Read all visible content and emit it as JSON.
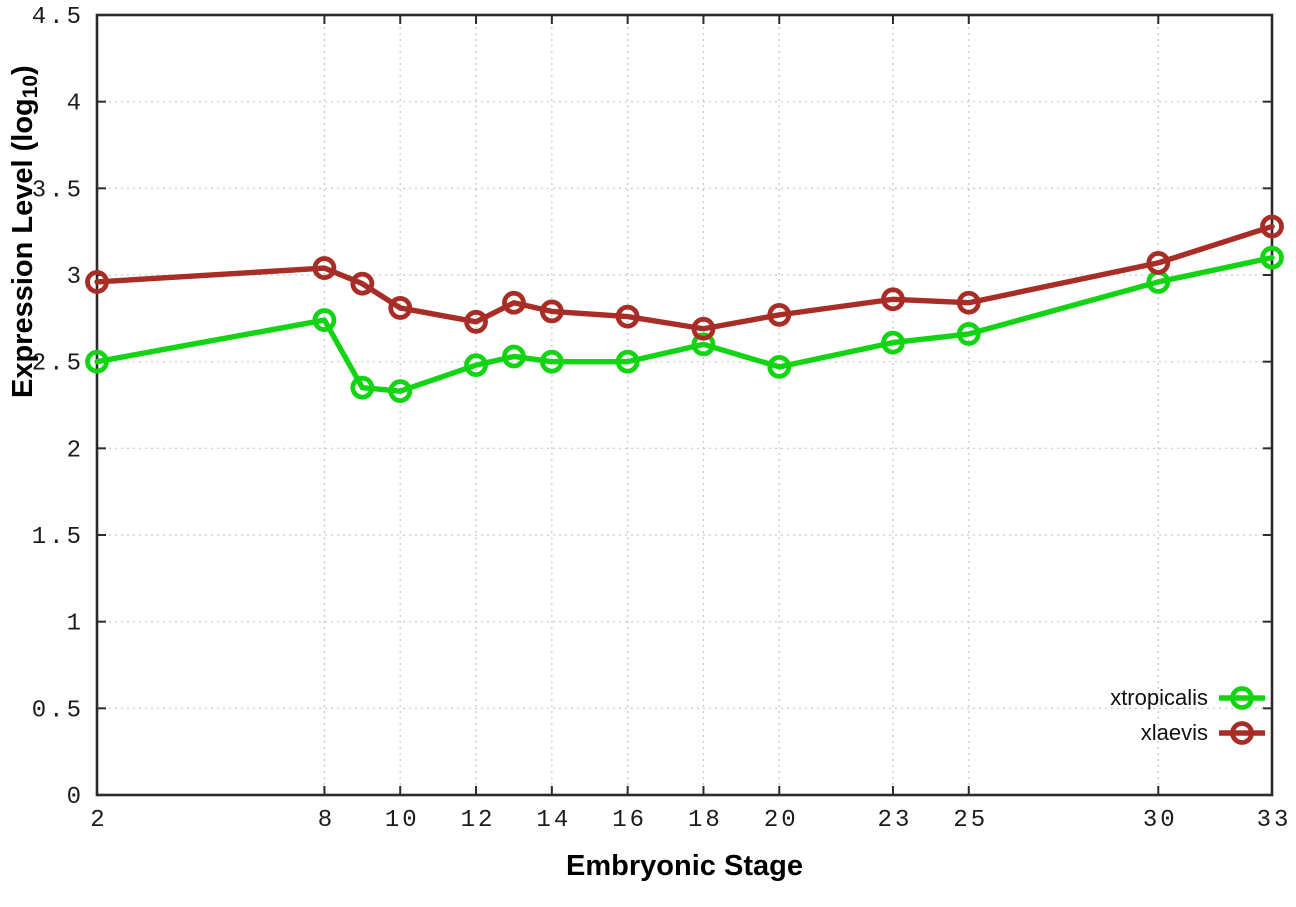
{
  "chart_data": {
    "type": "line",
    "title": "",
    "xlabel": "Embryonic Stage",
    "ylabel": {
      "text": "Expression Level (log",
      "sub": "10",
      "suffix": ")"
    },
    "x": [
      2,
      8,
      9,
      10,
      12,
      13,
      14,
      16,
      18,
      20,
      23,
      25,
      30,
      33
    ],
    "series": [
      {
        "name": "xtropicalis",
        "color": "#13d413",
        "values": [
          2.5,
          2.74,
          2.35,
          2.33,
          2.48,
          2.53,
          2.5,
          2.5,
          2.6,
          2.47,
          2.61,
          2.66,
          2.96,
          3.1
        ]
      },
      {
        "name": "xlaevis",
        "color": "#a82d26",
        "values": [
          2.96,
          3.04,
          2.95,
          2.81,
          2.73,
          2.84,
          2.79,
          2.76,
          2.69,
          2.77,
          2.86,
          2.84,
          3.07,
          3.28
        ]
      }
    ],
    "xlim": [
      2,
      33
    ],
    "ylim": [
      0,
      4.5
    ],
    "xticks": [
      2,
      8,
      10,
      12,
      14,
      16,
      18,
      20,
      23,
      25,
      30,
      33
    ],
    "yticks": [
      0,
      0.5,
      1,
      1.5,
      2,
      2.5,
      3,
      3.5,
      4,
      4.5
    ],
    "grid": true,
    "legend_position": "inside-bottom-right",
    "colors": {
      "border": "#2b2b2b",
      "grid": "#c6c6c6",
      "tick_text": "#1c1c1c"
    }
  }
}
